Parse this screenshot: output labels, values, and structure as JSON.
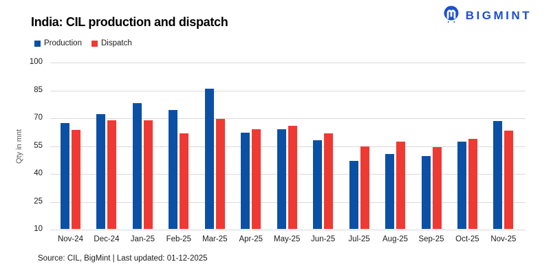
{
  "header": {
    "title": "India: CIL production and dispatch",
    "brand": "BIGMINT"
  },
  "colors": {
    "production": "#0b50a5",
    "dispatch": "#ee3a33",
    "brand_blue": "#1d4fd1",
    "grid": "#d9d9d9"
  },
  "legend": [
    {
      "label": "Production",
      "color": "#0b50a5"
    },
    {
      "label": "Dispatch",
      "color": "#ee3a33"
    }
  ],
  "chart_data": {
    "type": "bar",
    "title": "India: CIL production and dispatch",
    "categories": [
      "Nov-24",
      "Dec-24",
      "Jan-25",
      "Feb-25",
      "Mar-25",
      "Apr-25",
      "May-25",
      "Jun-25",
      "Jul-25",
      "Aug-25",
      "Sep-25",
      "Oct-25",
      "Nov-25"
    ],
    "series": [
      {
        "name": "Production",
        "color": "#0b50a5",
        "values": [
          67.0,
          72.0,
          77.8,
          74.2,
          85.4,
          62.0,
          63.8,
          57.8,
          46.5,
          50.5,
          49.3,
          57.0,
          68.0
        ]
      },
      {
        "name": "Dispatch",
        "color": "#ee3a33",
        "values": [
          63.3,
          68.5,
          68.5,
          61.6,
          69.1,
          63.6,
          65.4,
          61.4,
          54.5,
          57.0,
          54.0,
          58.6,
          62.8
        ]
      }
    ],
    "xlabel": "",
    "ylabel": "Qty in mnt",
    "yticks": [
      10,
      25,
      40,
      55,
      70,
      85,
      100
    ],
    "ylim": [
      10,
      100
    ],
    "grid": "horizontal",
    "legend_position": "top-left"
  },
  "footer": {
    "source": "Source: CIL, BigMint | Last updated: 01-12-2025"
  }
}
